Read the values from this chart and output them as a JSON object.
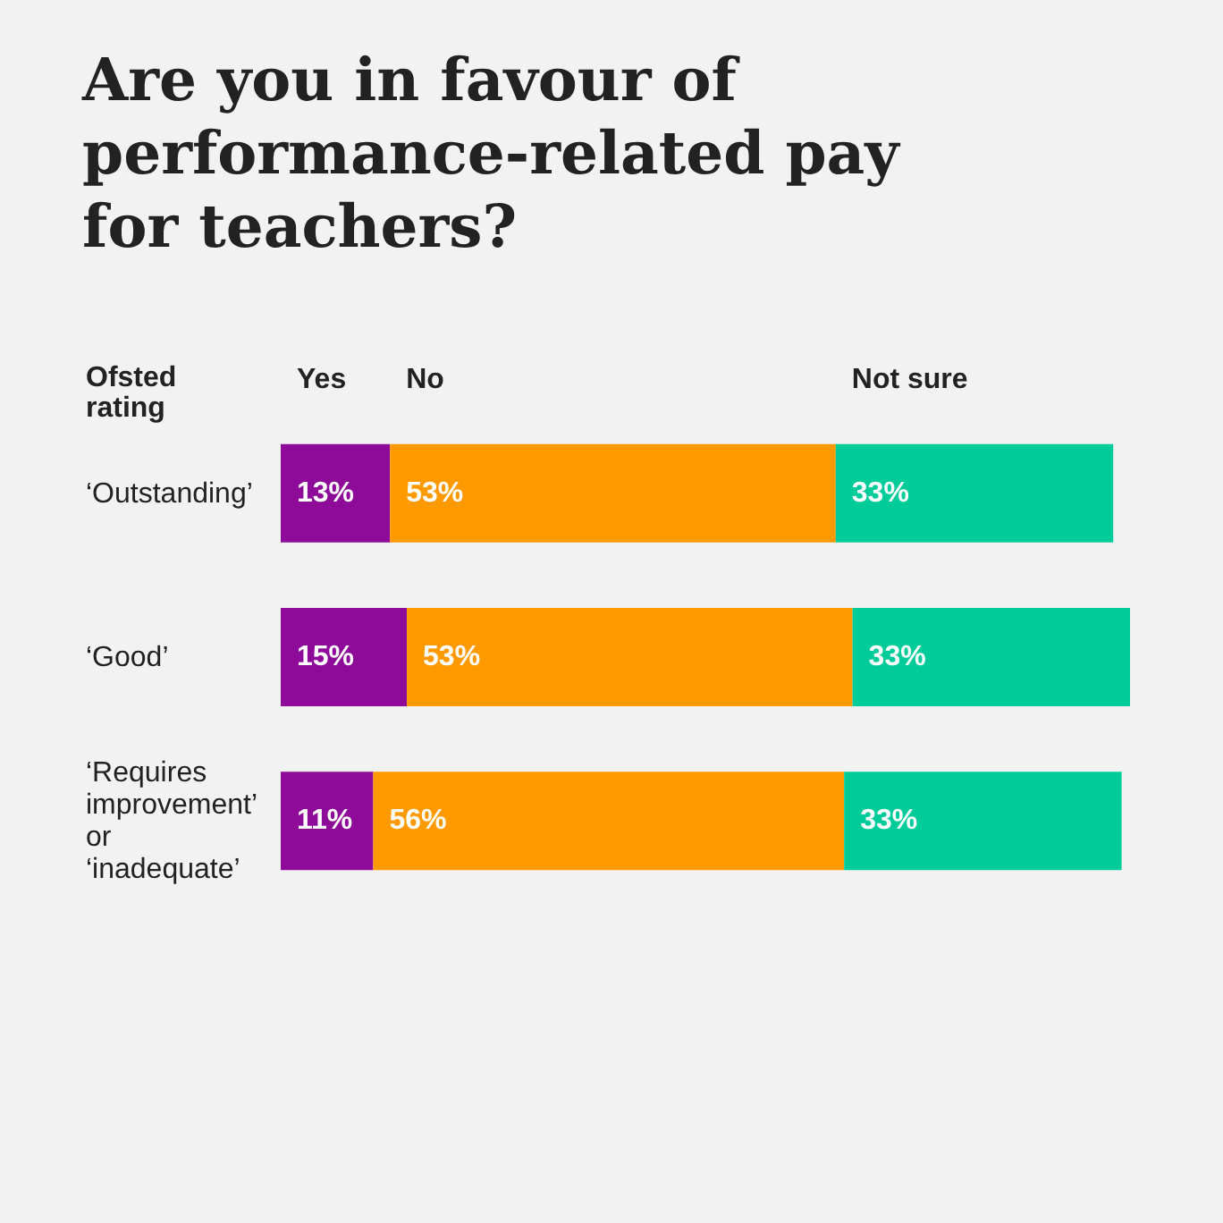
{
  "chart_data": {
    "type": "bar",
    "title": "Are you in favour of performance-related pay for teachers?",
    "ylabel": "Ofsted rating",
    "categories": [
      "‘Outstanding’",
      "‘Good’",
      "‘Requires improvement’ or ‘inadequate’"
    ],
    "orientation": "horizontal",
    "stacked": true,
    "legend": "top",
    "series": [
      {
        "name": "Yes",
        "color": "#8e0a99",
        "values": [
          13,
          15,
          11
        ],
        "value_labels": [
          "13%",
          "15%",
          "11%"
        ]
      },
      {
        "name": "No",
        "color": "#ff9900",
        "values": [
          53,
          53,
          56
        ],
        "value_labels": [
          "53%",
          "53%",
          "56%"
        ]
      },
      {
        "name": "Not sure",
        "color": "#00cc99",
        "values": [
          33,
          33,
          33
        ],
        "value_labels": [
          "33%",
          "33%",
          "33%"
        ]
      }
    ]
  }
}
